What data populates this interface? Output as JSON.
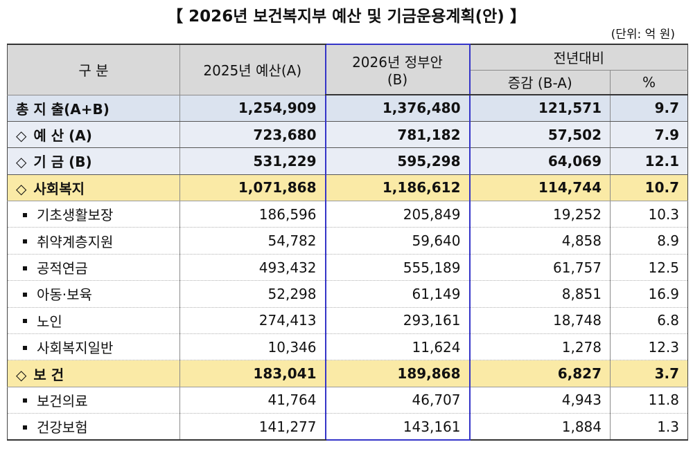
{
  "title": "【 2026년 보건복지부 예산 및 기금운용계획(안) 】",
  "unit": "(단위: 억 원)",
  "header": {
    "category": "구 분",
    "budget_2025": "2025년 예산(A)",
    "budget_2026_line1": "2026년 정부안",
    "budget_2026_line2": "(B)",
    "yoy": "전년대비",
    "change": "증감 (B-A)",
    "percent": "%"
  },
  "rows": [
    {
      "type": "total",
      "label": "총 지 출(A+B)",
      "v2025": "1,254,909",
      "v2026": "1,376,480",
      "change": "121,571",
      "pct": "9.7"
    },
    {
      "type": "sub",
      "label": "예 산 (A)",
      "v2025": "723,680",
      "v2026": "781,182",
      "change": "57,502",
      "pct": "7.9"
    },
    {
      "type": "sub",
      "label": "기 금 (B)",
      "v2025": "531,229",
      "v2026": "595,298",
      "change": "64,069",
      "pct": "12.1"
    },
    {
      "type": "sector",
      "label": "사회복지",
      "v2025": "1,071,868",
      "v2026": "1,186,612",
      "change": "114,744",
      "pct": "10.7"
    },
    {
      "type": "item",
      "label": "기초생활보장",
      "v2025": "186,596",
      "v2026": "205,849",
      "change": "19,252",
      "pct": "10.3"
    },
    {
      "type": "item",
      "label": "취약계층지원",
      "v2025": "54,782",
      "v2026": "59,640",
      "change": "4,858",
      "pct": "8.9"
    },
    {
      "type": "item",
      "label": "공적연금",
      "v2025": "493,432",
      "v2026": "555,189",
      "change": "61,757",
      "pct": "12.5"
    },
    {
      "type": "item",
      "label": "아동‧보육",
      "v2025": "52,298",
      "v2026": "61,149",
      "change": "8,851",
      "pct": "16.9"
    },
    {
      "type": "item",
      "label": "노인",
      "v2025": "274,413",
      "v2026": "293,161",
      "change": "18,748",
      "pct": "6.8"
    },
    {
      "type": "item",
      "label": "사회복지일반",
      "v2025": "10,346",
      "v2026": "11,624",
      "change": "1,278",
      "pct": "12.3"
    },
    {
      "type": "sector",
      "label": "보 건",
      "v2025": "183,041",
      "v2026": "189,868",
      "change": "6,827",
      "pct": "3.7"
    },
    {
      "type": "item",
      "label": "보건의료",
      "v2025": "41,764",
      "v2026": "46,707",
      "change": "4,943",
      "pct": "11.8"
    },
    {
      "type": "item",
      "label": "건강보험",
      "v2025": "141,277",
      "v2026": "143,161",
      "change": "1,884",
      "pct": "1.3"
    }
  ],
  "icons": {
    "diamond": "◇",
    "bullet": "small-square-bullet"
  },
  "colors": {
    "header_bg": "#d9d9d9",
    "total_bg": "#dbe3ef",
    "sub_bg": "#e9edf5",
    "sector_bg": "#faeaa6",
    "highlight_border": "#3434c8"
  }
}
